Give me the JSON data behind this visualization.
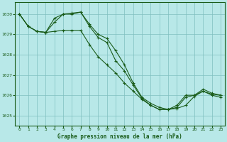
{
  "title": "Graphe pression niveau de la mer (hPa)",
  "background_color": "#b8e8e8",
  "grid_color": "#7fbfbf",
  "line_color": "#1a5c1a",
  "xlim": [
    -0.5,
    23.5
  ],
  "ylim": [
    1024.5,
    1030.6
  ],
  "yticks": [
    1025,
    1026,
    1027,
    1028,
    1029,
    1030
  ],
  "xticks": [
    0,
    1,
    2,
    3,
    4,
    5,
    6,
    7,
    8,
    9,
    10,
    11,
    12,
    13,
    14,
    15,
    16,
    17,
    18,
    19,
    20,
    21,
    22,
    23
  ],
  "series": [
    {
      "x": [
        0,
        1,
        2,
        3,
        4,
        5,
        6,
        7,
        8,
        9,
        10,
        11,
        12,
        13,
        14,
        15,
        16,
        17,
        18,
        19,
        20,
        21,
        22,
        23
      ],
      "y": [
        1030.0,
        1029.4,
        1029.15,
        1029.1,
        1029.15,
        1029.2,
        1029.2,
        1029.2,
        1028.5,
        1027.9,
        1027.5,
        1027.1,
        1026.6,
        1026.2,
        1025.8,
        1025.5,
        1025.3,
        1025.3,
        1025.5,
        1026.0,
        1026.0,
        1026.3,
        1026.1,
        1026.0
      ]
    },
    {
      "x": [
        0,
        1,
        2,
        3,
        4,
        5,
        6,
        7,
        8,
        9,
        10,
        11,
        12,
        13,
        14,
        15,
        16,
        17,
        18,
        19,
        20,
        21,
        22,
        23
      ],
      "y": [
        1030.0,
        1029.4,
        1029.15,
        1029.1,
        1029.6,
        1030.0,
        1030.05,
        1030.1,
        1029.5,
        1029.0,
        1028.8,
        1028.2,
        1027.5,
        1026.6,
        1025.9,
        1025.6,
        1025.4,
        1025.3,
        1025.4,
        1025.9,
        1026.0,
        1026.2,
        1026.0,
        1025.9
      ]
    },
    {
      "x": [
        0,
        1,
        2,
        3,
        4,
        5,
        6,
        7,
        8,
        9,
        10,
        11,
        12,
        13,
        14,
        15,
        16,
        17,
        18,
        19,
        20,
        21,
        22,
        23
      ],
      "y": [
        1030.0,
        1029.4,
        1029.15,
        1029.1,
        1029.8,
        1030.0,
        1030.0,
        1030.1,
        1029.4,
        1028.85,
        1028.6,
        1027.7,
        1027.2,
        1026.5,
        1025.85,
        1025.5,
        1025.3,
        1025.3,
        1025.35,
        1025.5,
        1025.95,
        1026.2,
        1026.05,
        1026.0
      ]
    }
  ]
}
